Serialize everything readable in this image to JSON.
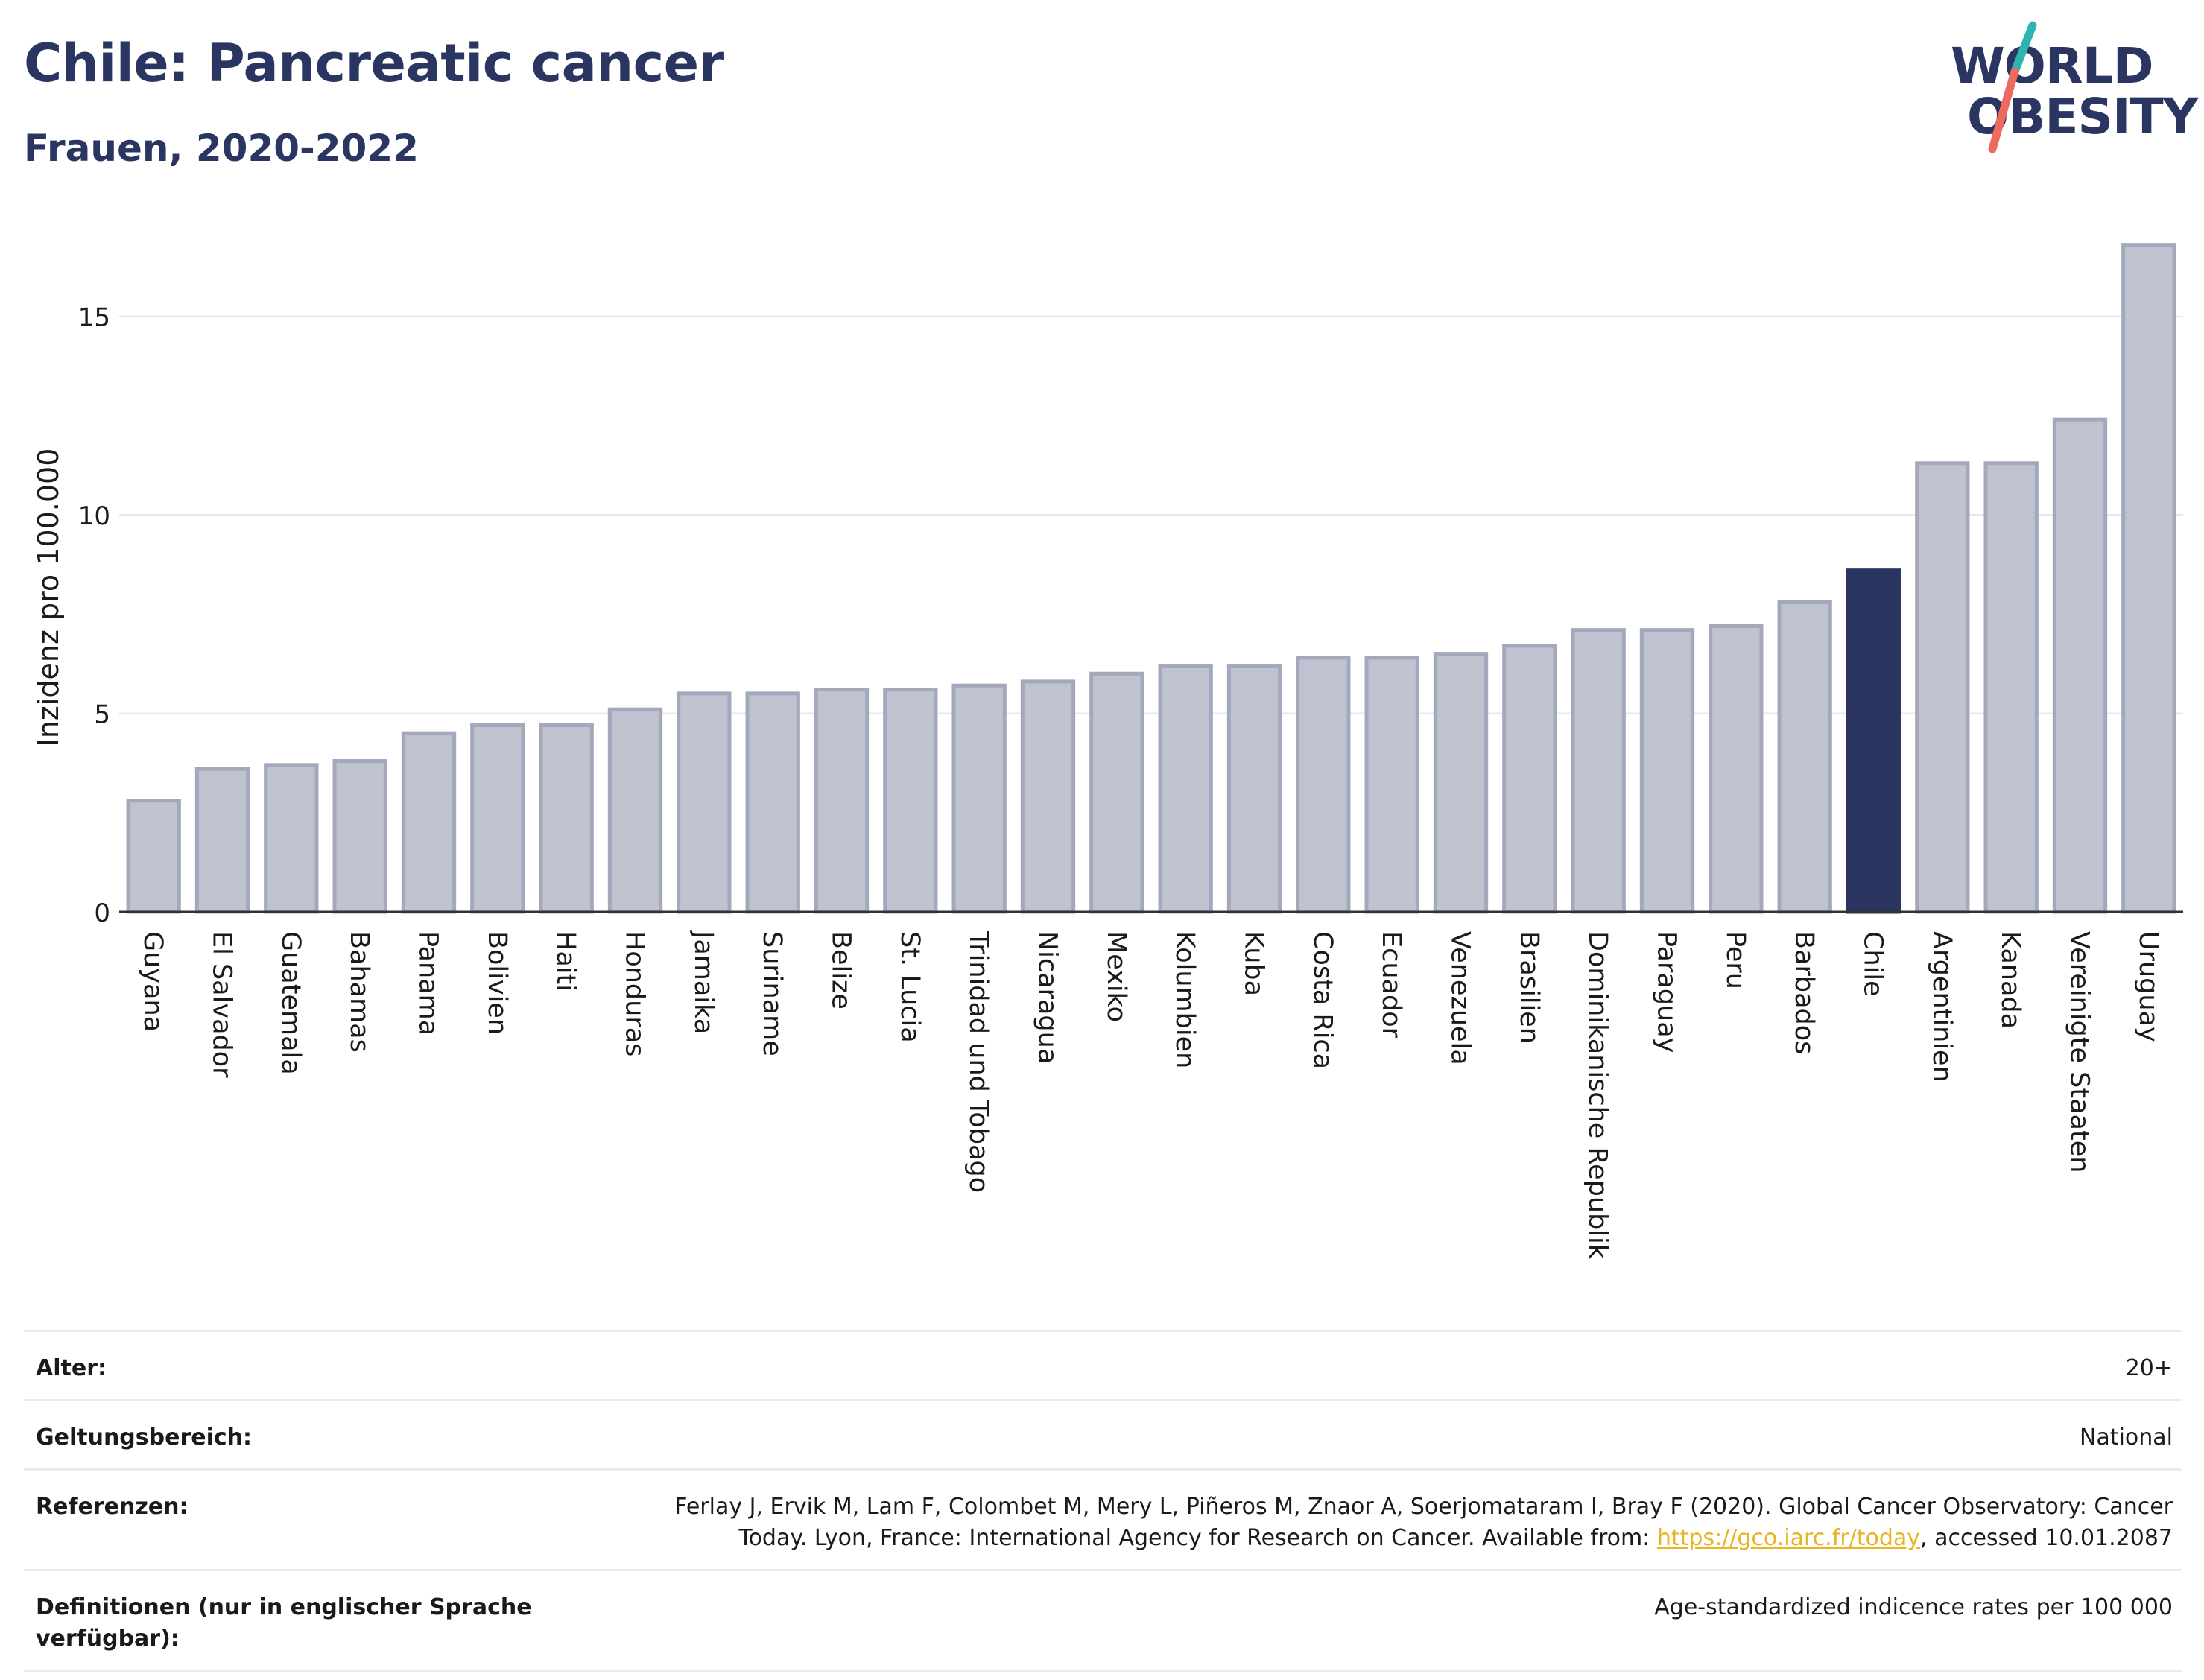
{
  "header": {
    "title": "Chile: Pancreatic cancer",
    "subtitle": "Frauen, 2020-2022"
  },
  "logo": {
    "line1": "WORLD",
    "line2": "OBESITY",
    "colors": {
      "text": "#2b3562",
      "slash_top": "#2cb5b0",
      "slash_bottom": "#ee6a5c"
    }
  },
  "colors": {
    "bar": "#bfc2cf",
    "bar_border": "#a3a8bd",
    "highlight": "#2b3562",
    "grid": "#e6e7ee",
    "axis": "#333333"
  },
  "chart_data": {
    "type": "bar",
    "ylabel": "Inzidenz pro 100.000",
    "ylim": [
      0,
      17
    ],
    "yticks": [
      0,
      5,
      10,
      15
    ],
    "grid": true,
    "highlight": "Chile",
    "categories": [
      "Guyana",
      "El Salvador",
      "Guatemala",
      "Bahamas",
      "Panama",
      "Bolivien",
      "Haiti",
      "Honduras",
      "Jamaika",
      "Suriname",
      "Belize",
      "St. Lucia",
      "Trinidad und Tobago",
      "Nicaragua",
      "Mexiko",
      "Kolumbien",
      "Kuba",
      "Costa Rica",
      "Ecuador",
      "Venezuela",
      "Brasilien",
      "Dominikanische Republik",
      "Paraguay",
      "Peru",
      "Barbados",
      "Chile",
      "Argentinien",
      "Kanada",
      "Vereinigte Staaten",
      "Uruguay"
    ],
    "values": [
      2.8,
      3.6,
      3.7,
      3.8,
      4.5,
      4.7,
      4.7,
      5.1,
      5.5,
      5.5,
      5.6,
      5.6,
      5.7,
      5.8,
      6.0,
      6.2,
      6.2,
      6.4,
      6.4,
      6.5,
      6.7,
      7.1,
      7.1,
      7.2,
      7.8,
      8.6,
      11.3,
      11.3,
      12.4,
      16.8
    ]
  },
  "info": [
    {
      "label": "Alter:",
      "value": "20+"
    },
    {
      "label": "Geltungsbereich:",
      "value": "National"
    },
    {
      "label": "Referenzen:",
      "value_before": "Ferlay J, Ervik M, Lam F, Colombet M, Mery L, Piñeros M, Znaor A, Soerjomataram I, Bray F (2020). Global Cancer Observatory: Cancer Today. Lyon, France: International Agency for Research on Cancer. Available from: ",
      "link": "https://gco.iarc.fr/today",
      "value_after": ", accessed 10.01.2087"
    },
    {
      "label": "Definitionen (nur in englischer Sprache verfügbar):",
      "value": "Age-standardized indicence rates per 100 000"
    }
  ]
}
